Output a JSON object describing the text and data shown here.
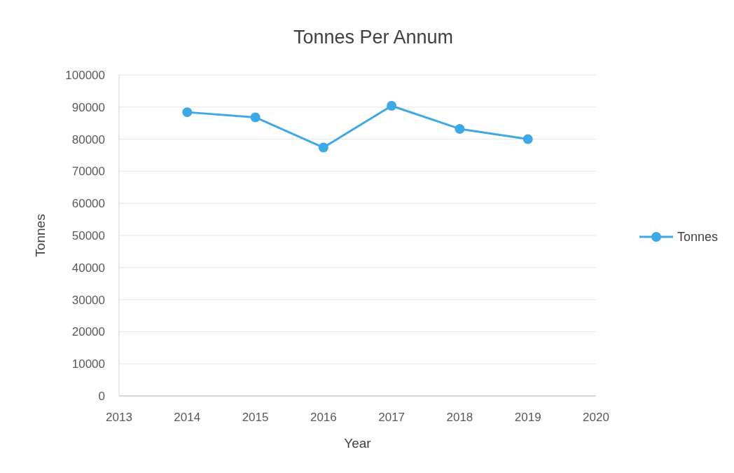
{
  "chart_data": {
    "type": "line",
    "title": "Tonnes Per Annum",
    "xlabel": "Year",
    "ylabel": "Tonnes",
    "x": [
      2014,
      2015,
      2016,
      2017,
      2018,
      2019
    ],
    "series": [
      {
        "name": "Tonnes",
        "color": "#3fa9e6",
        "values": [
          88400,
          86800,
          77400,
          90400,
          83200,
          80000
        ]
      }
    ],
    "xlim": [
      2013,
      2020
    ],
    "xticks": [
      2013,
      2014,
      2015,
      2016,
      2017,
      2018,
      2019,
      2020
    ],
    "ylim": [
      0,
      100000
    ],
    "yticks": [
      0,
      10000,
      20000,
      30000,
      40000,
      50000,
      60000,
      70000,
      80000,
      90000,
      100000
    ],
    "grid": "y",
    "legend": "right",
    "marker": "circle",
    "line_style": "solid"
  }
}
